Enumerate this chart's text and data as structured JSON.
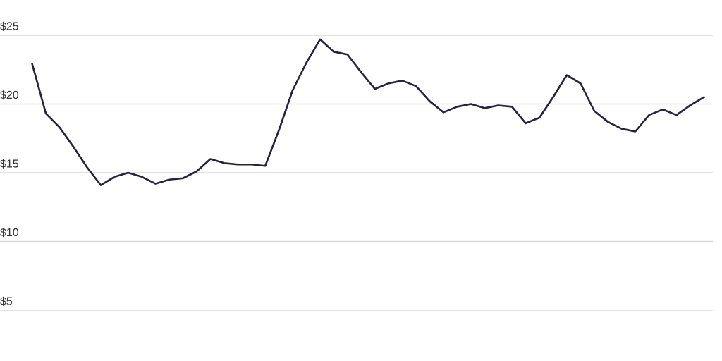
{
  "chart_data": {
    "type": "line",
    "categories": [
      null,
      null,
      null,
      null,
      null,
      null,
      null,
      null,
      null,
      null,
      null,
      null,
      null,
      null,
      null,
      null,
      null,
      null,
      null,
      null,
      null,
      null,
      null,
      null,
      null,
      null,
      null,
      null,
      null,
      null,
      null,
      null,
      null,
      null,
      null,
      null,
      null,
      null,
      null,
      null,
      null,
      null,
      null,
      null,
      null,
      null,
      null,
      null,
      null,
      null
    ],
    "series": [
      {
        "color": "#25233d",
        "values": [
          22.9,
          19.3,
          18.3,
          16.9,
          15.4,
          14.1,
          14.7,
          15.0,
          14.7,
          14.2,
          14.5,
          14.6,
          15.1,
          16.0,
          15.7,
          15.6,
          15.6,
          15.5,
          18.1,
          21.0,
          23.0,
          24.7,
          23.8,
          23.6,
          22.3,
          21.1,
          21.5,
          21.7,
          21.3,
          20.2,
          19.4,
          19.8,
          20.0,
          19.7,
          19.9,
          19.8,
          18.6,
          19.0,
          20.5,
          22.1,
          21.5,
          19.5,
          18.7,
          18.2,
          18.0,
          19.2,
          19.6,
          19.2,
          19.9,
          20.5
        ]
      }
    ],
    "ylim": [
      5,
      25
    ],
    "yticks": [
      {
        "value": 5,
        "label": "$5"
      },
      {
        "value": 10,
        "label": "$10"
      },
      {
        "value": 15,
        "label": "$15"
      },
      {
        "value": 20,
        "label": "$20"
      },
      {
        "value": 25,
        "label": "$25"
      }
    ],
    "grid": "y",
    "tick_labels": "y",
    "line_style": "solid"
  }
}
